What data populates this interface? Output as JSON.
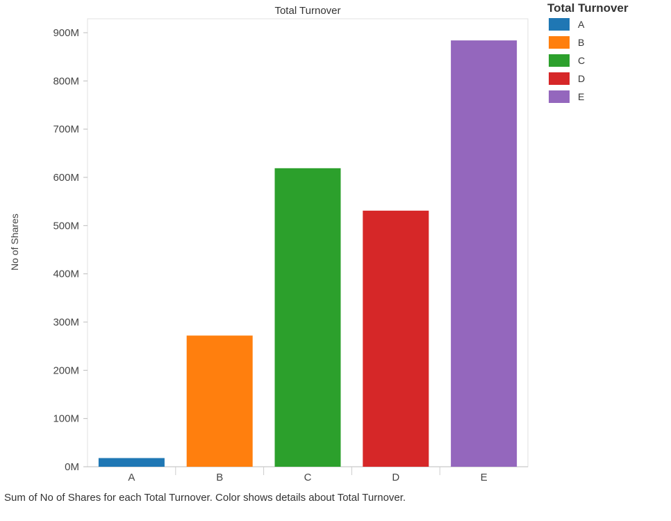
{
  "chart_data": {
    "type": "bar",
    "title": "Total Turnover",
    "xlabel": "",
    "ylabel": "No of Shares",
    "categories": [
      "A",
      "B",
      "C",
      "D",
      "E"
    ],
    "values": [
      18000000,
      272000000,
      619000000,
      531000000,
      884000000
    ],
    "colors": [
      "#1f77b4",
      "#ff7f0e",
      "#2ca02c",
      "#d62728",
      "#9467bd"
    ],
    "ylim": [
      0,
      900000000
    ],
    "yticks": [
      0,
      100000000,
      200000000,
      300000000,
      400000000,
      500000000,
      600000000,
      700000000,
      800000000,
      900000000
    ],
    "ytick_labels": [
      "0M",
      "100M",
      "200M",
      "300M",
      "400M",
      "500M",
      "600M",
      "700M",
      "800M",
      "900M"
    ],
    "grid": false,
    "legend": {
      "title": "Total Turnover",
      "placement": "top-right",
      "entries": [
        "A",
        "B",
        "C",
        "D",
        "E"
      ]
    }
  },
  "caption": "Sum of No of Shares for each Total Turnover.  Color shows details about Total Turnover."
}
